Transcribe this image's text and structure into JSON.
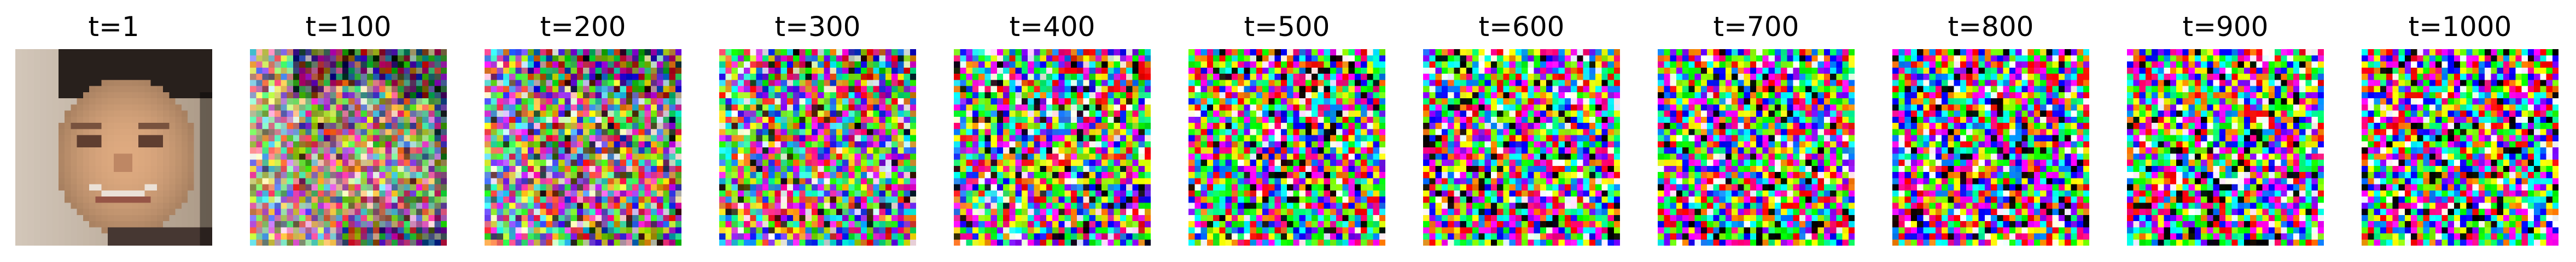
{
  "figure": {
    "panels": [
      {
        "title": "t=1",
        "noise_level": 0.0
      },
      {
        "title": "t=100",
        "noise_level": 0.45
      },
      {
        "title": "t=200",
        "noise_level": 0.65
      },
      {
        "title": "t=300",
        "noise_level": 0.8
      },
      {
        "title": "t=400",
        "noise_level": 0.9
      },
      {
        "title": "t=500",
        "noise_level": 0.95
      },
      {
        "title": "t=600",
        "noise_level": 0.97
      },
      {
        "title": "t=700",
        "noise_level": 0.98
      },
      {
        "title": "t=800",
        "noise_level": 0.99
      },
      {
        "title": "t=900",
        "noise_level": 0.995
      },
      {
        "title": "t=1000",
        "noise_level": 1.0
      }
    ]
  }
}
